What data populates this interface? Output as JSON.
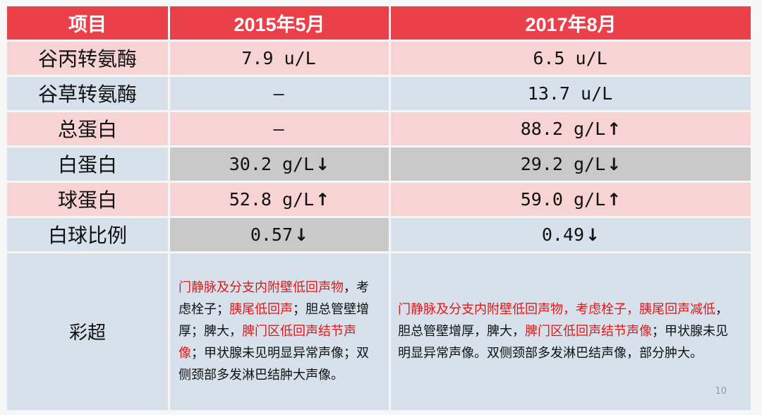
{
  "table": {
    "headers": [
      "项目",
      "2015年5月",
      "2017年8月"
    ],
    "rows": [
      {
        "item": "谷丙转氨酶",
        "v2015": "7.9 u/L",
        "a2015": "",
        "v2017": "6.5 u/L",
        "a2017": ""
      },
      {
        "item": "谷草转氨酶",
        "v2015": "–",
        "a2015": "",
        "v2017": "13.7 u/L",
        "a2017": ""
      },
      {
        "item": "总蛋白",
        "v2015": "–",
        "a2015": "",
        "v2017": "88.2 g/L",
        "a2017": "↑"
      },
      {
        "item": "白蛋白",
        "v2015": "30.2 g/L",
        "a2015": "↓",
        "v2017": "29.2 g/L",
        "a2017": "↓"
      },
      {
        "item": "球蛋白",
        "v2015": "52.8 g/L",
        "a2015": "↑",
        "v2017": "59.0 g/L",
        "a2017": "↑"
      },
      {
        "item": "白球比例",
        "v2015": "0.57",
        "a2015": "↓",
        "v2017": "0.49",
        "a2017": "↓"
      }
    ],
    "ultrasound": {
      "label": "彩超",
      "text2015": [
        {
          "t": "门静脉及分支内附壁低回声物",
          "red": true
        },
        {
          "t": "，考虑栓子；",
          "red": false
        },
        {
          "t": "胰尾低回声",
          "red": true
        },
        {
          "t": "；胆总管壁增厚；脾大，",
          "red": false
        },
        {
          "t": "脾门区低回声结节声像",
          "red": true
        },
        {
          "t": "；甲状腺未见明显异常声像；双侧颈部多发淋巴结肿大声像。",
          "red": false
        }
      ],
      "text2017": [
        {
          "t": "门静脉及分支内附壁低回声物，考虑栓子，胰尾回声减低",
          "red": true
        },
        {
          "t": "，胆总管壁增厚，脾大，",
          "red": false
        },
        {
          "t": "脾门区低回声结节声像",
          "red": true
        },
        {
          "t": "；甲状腺未见明显异常声像。双侧颈部多发淋巴结声像，部分肿大。",
          "red": false
        }
      ]
    }
  },
  "page_number": "10",
  "colors": {
    "header": "#e9404a",
    "pink_row": "#f8d3d4",
    "blue_row": "#d6e1ec",
    "gray_cell": "#c9c9c9",
    "abnormal_text": "#e01818"
  }
}
